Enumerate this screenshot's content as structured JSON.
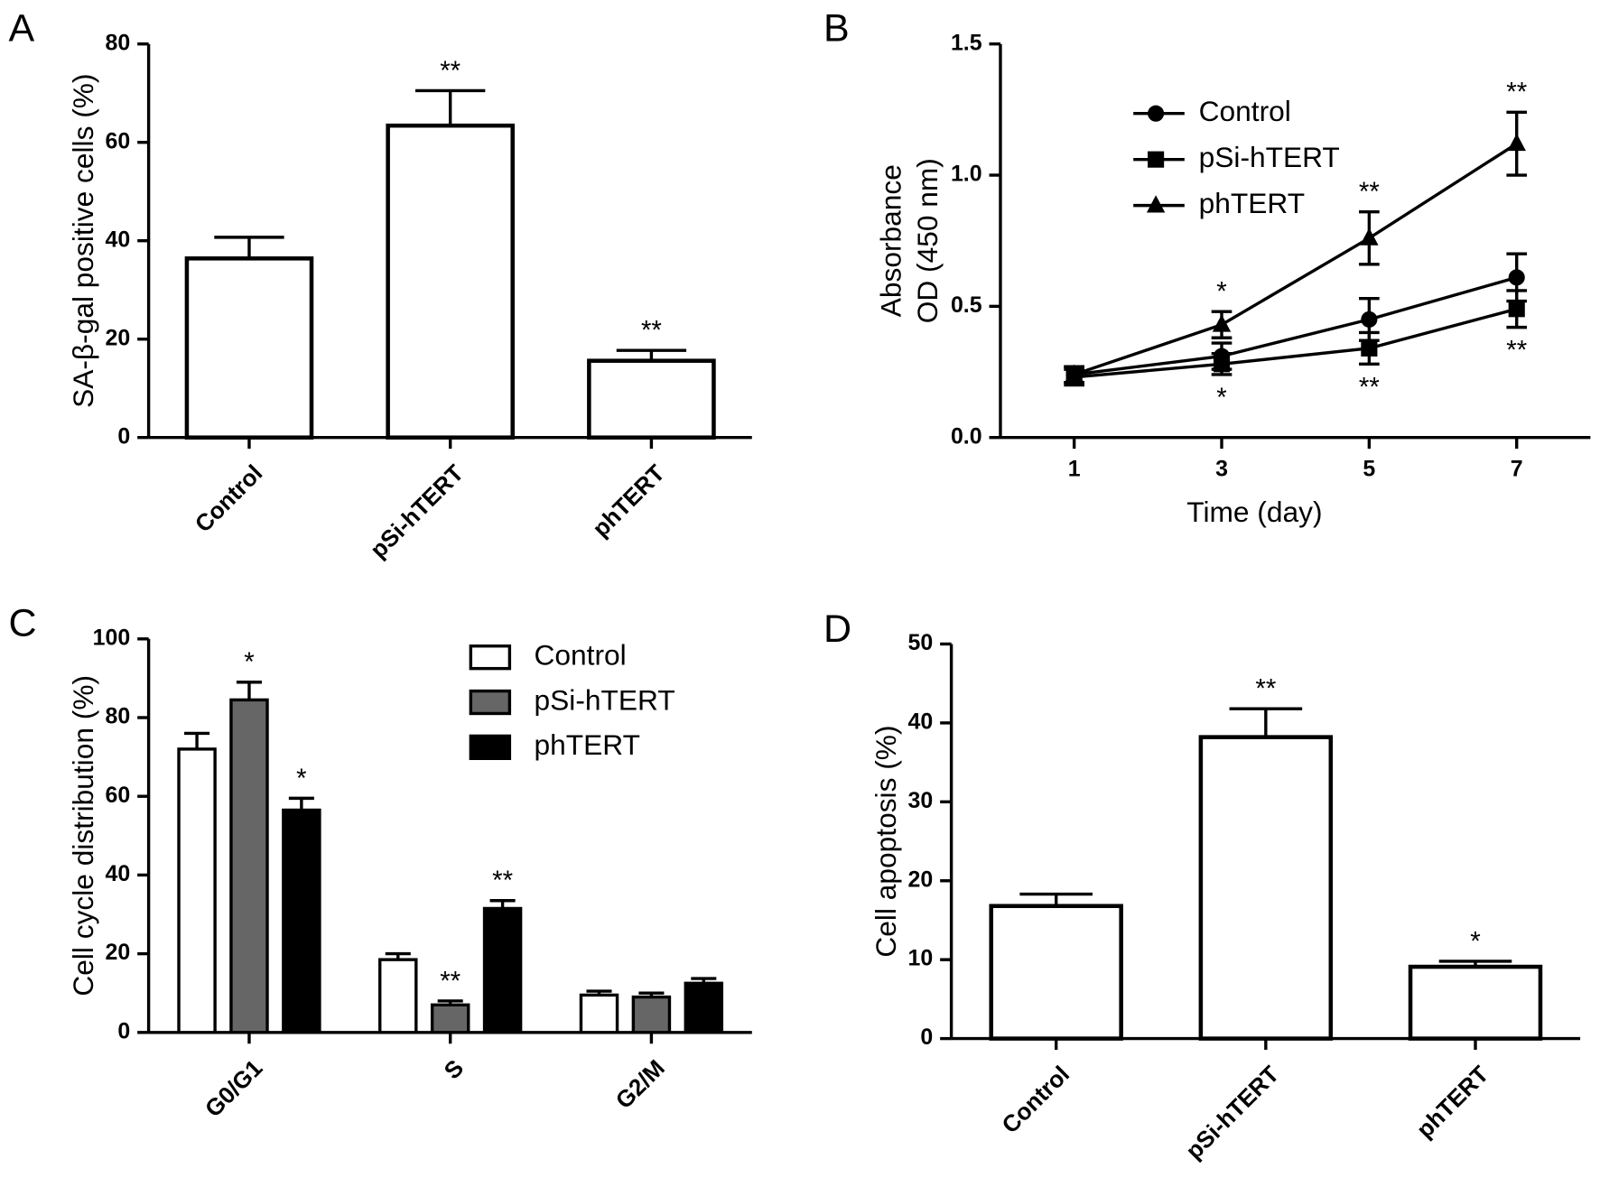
{
  "chart_data": [
    {
      "type": "bar",
      "panel": "A",
      "ylabel": "SA-β-gal positive cells (%)",
      "categories": [
        "Control",
        "pSi-hTERT",
        "phTERT"
      ],
      "values": [
        36.4,
        63.4,
        15.6
      ],
      "errors": [
        4.3,
        7.1,
        2.1
      ],
      "annotations": [
        null,
        "**",
        "**"
      ],
      "color": "#ffffff",
      "ylim": [
        0,
        80
      ],
      "yticks": [
        0,
        20,
        40,
        60,
        80
      ]
    },
    {
      "type": "line",
      "panel": "B",
      "ylabel": [
        "Absorbance",
        "OD (450 nm)"
      ],
      "xlabel": "Time (day)",
      "x": [
        1,
        3,
        5,
        7
      ],
      "xlim": [
        0,
        8
      ],
      "xticks": [
        1,
        3,
        5,
        7
      ],
      "ylim": [
        0,
        1.5
      ],
      "yticks": [
        {
          "value": 0,
          "label": "0.0"
        },
        {
          "value": 0.5,
          "label": "0.5"
        },
        {
          "value": 1,
          "label": "1.0"
        },
        {
          "value": 1.5,
          "label": "1.5"
        }
      ],
      "legend": "upper left",
      "series": [
        {
          "name": "Control",
          "color": "#000000",
          "marker": "circle",
          "values": [
            0.24,
            0.31,
            0.45,
            0.61
          ],
          "errors": [
            0.03,
            0.05,
            0.08,
            0.09
          ],
          "annotations": [
            null,
            null,
            null,
            null
          ],
          "annotation_position": "above"
        },
        {
          "name": "pSi-hTERT",
          "color": "#000000",
          "marker": "square",
          "values": [
            0.23,
            0.28,
            0.34,
            0.49
          ],
          "errors": [
            0.03,
            0.04,
            0.06,
            0.07
          ],
          "annotations": [
            null,
            "*",
            "**",
            "**"
          ],
          "annotation_position": "below"
        },
        {
          "name": "phTERT",
          "color": "#000000",
          "marker": "triangle",
          "values": [
            0.24,
            0.43,
            0.76,
            1.12
          ],
          "errors": [
            0.03,
            0.05,
            0.1,
            0.12
          ],
          "annotations": [
            null,
            "*",
            "**",
            "**"
          ],
          "annotation_position": "above"
        }
      ]
    },
    {
      "type": "bar",
      "panel": "C",
      "ylabel": "Cell cycle distribution (%)",
      "categories": [
        "G0/G1",
        "S",
        "G2/M"
      ],
      "ylim": [
        0,
        100
      ],
      "yticks": [
        0,
        20,
        40,
        60,
        80,
        100
      ],
      "legend": "upper right",
      "series": [
        {
          "name": "Control",
          "color": "#ffffff",
          "values": [
            72,
            18.5,
            9.5
          ],
          "errors": [
            4,
            1.5,
            1
          ],
          "annotations": [
            null,
            null,
            null
          ]
        },
        {
          "name": "pSi-hTERT",
          "color": "#666666",
          "values": [
            84.5,
            7,
            9
          ],
          "errors": [
            4.5,
            1,
            1
          ],
          "annotations": [
            "*",
            "**",
            null
          ]
        },
        {
          "name": "phTERT",
          "color": "#000000",
          "values": [
            56.5,
            31.5,
            12.5
          ],
          "errors": [
            3,
            2,
            1.2
          ],
          "annotations": [
            "*",
            "**",
            null
          ]
        }
      ]
    },
    {
      "type": "bar",
      "panel": "D",
      "ylabel": "Cell apoptosis (%)",
      "categories": [
        "Control",
        "pSi-hTERT",
        "phTERT"
      ],
      "values": [
        16.8,
        38.2,
        9.1
      ],
      "errors": [
        1.5,
        3.6,
        0.7
      ],
      "annotations": [
        null,
        "**",
        "*"
      ],
      "color": "#ffffff",
      "ylim": [
        0,
        50
      ],
      "yticks": [
        0,
        10,
        20,
        30,
        40,
        50
      ]
    }
  ]
}
